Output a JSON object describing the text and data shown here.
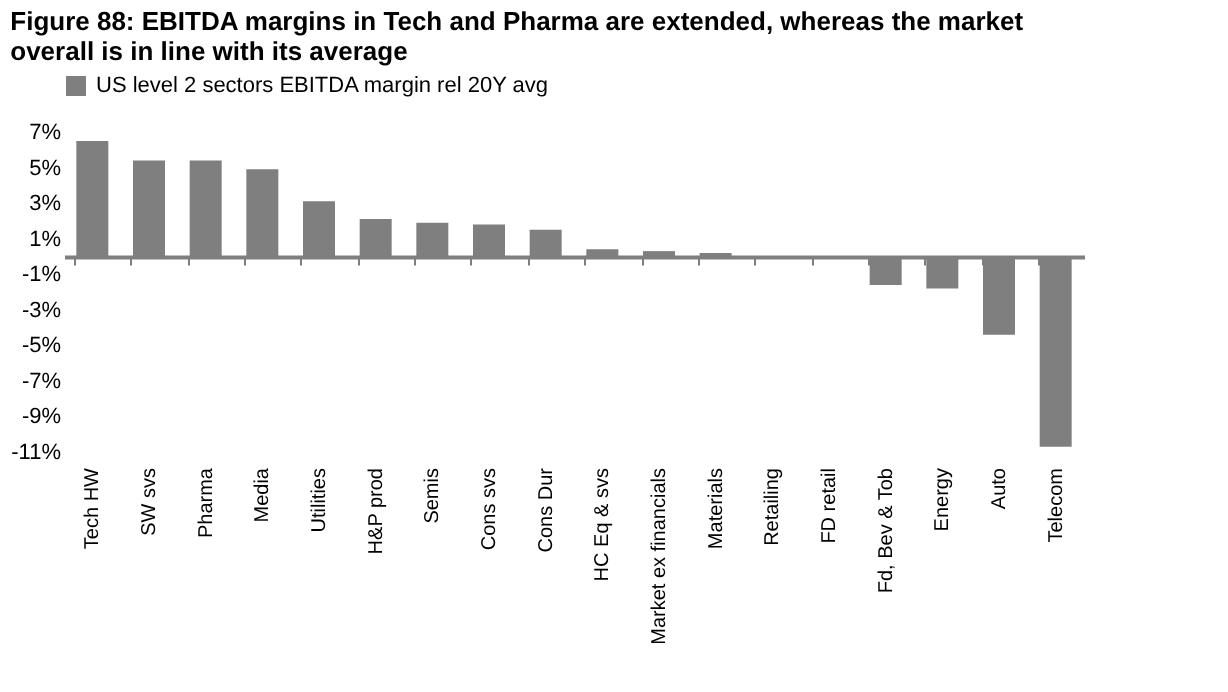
{
  "chart_data": {
    "type": "bar",
    "title": "Figure 88: EBITDA margins in Tech and Pharma are extended, whereas the market overall is in line with its average",
    "categories": [
      "Tech HW",
      "SW svs",
      "Pharma",
      "Media",
      "Utilities",
      "H&P prod",
      "Semis",
      "Cons svs",
      "Cons Dur",
      "HC Eq & svs",
      "Market ex financials",
      "Materials",
      "Retailing",
      "FD retail",
      "Fd, Bev & Tob",
      "Energy",
      "Auto",
      "Telecom"
    ],
    "series": [
      {
        "name": "US level 2 sectors EBITDA margin rel 20Y avg",
        "color": "#7f7f7f",
        "values": [
          6.5,
          5.4,
          5.4,
          4.9,
          3.1,
          2.1,
          1.9,
          1.8,
          1.5,
          0.4,
          0.3,
          0.2,
          0.0,
          -0.1,
          -1.6,
          -1.8,
          -4.4,
          -10.7
        ]
      }
    ],
    "ylim": [
      -11,
      7
    ],
    "yticks": [
      {
        "value": 7,
        "label": "7%"
      },
      {
        "value": 5,
        "label": "5%"
      },
      {
        "value": 3,
        "label": "3%"
      },
      {
        "value": 1,
        "label": "1%"
      },
      {
        "value": -1,
        "label": "-1%"
      },
      {
        "value": -3,
        "label": "-3%"
      },
      {
        "value": -5,
        "label": "-5%"
      },
      {
        "value": -7,
        "label": "-7%"
      },
      {
        "value": -9,
        "label": "-9%"
      },
      {
        "value": -11,
        "label": "-11%"
      }
    ],
    "grid": false,
    "legend": "top"
  }
}
